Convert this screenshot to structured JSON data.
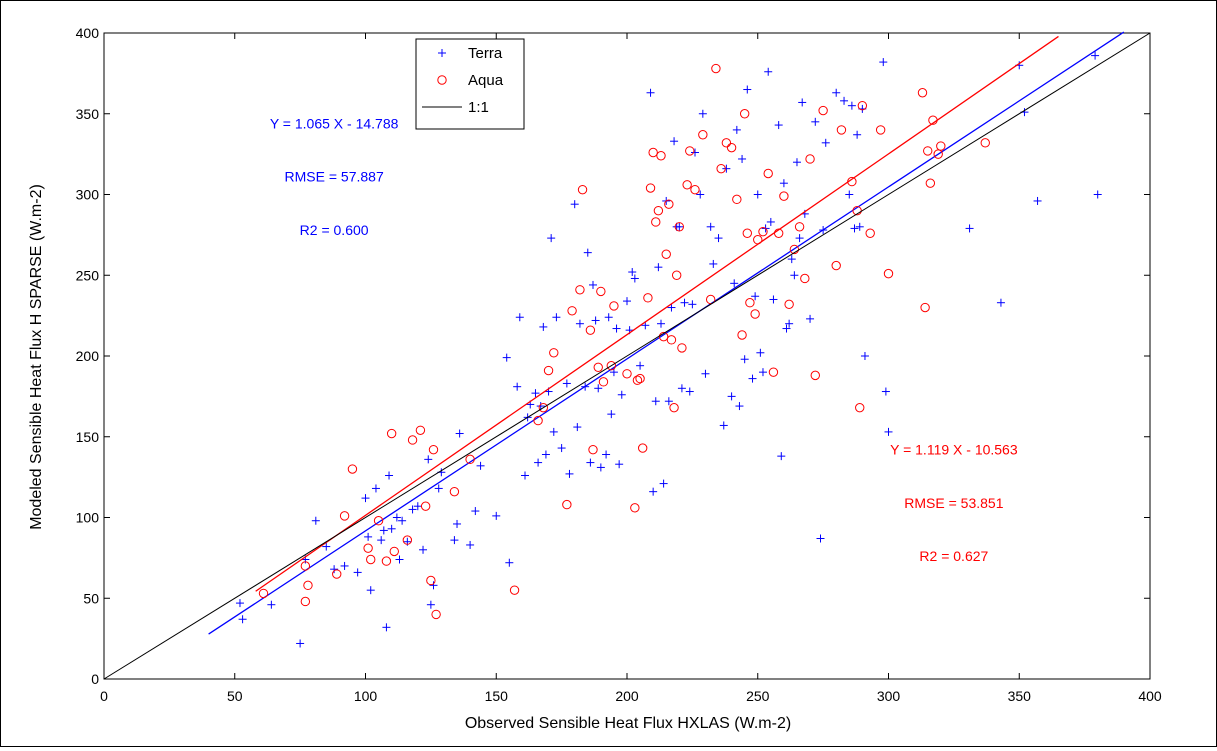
{
  "chart_data": {
    "type": "scatter",
    "xlabel": "Observed Sensible Heat Flux HXLAS (W.m-2)",
    "ylabel": "Modeled Sensible Heat Flux H SPARSE (W.m-2)",
    "xlim": [
      0,
      400
    ],
    "ylim": [
      0,
      400
    ],
    "xticks": [
      0,
      50,
      100,
      150,
      200,
      250,
      300,
      350,
      400
    ],
    "yticks": [
      0,
      50,
      100,
      150,
      200,
      250,
      300,
      350,
      400
    ],
    "grid": false,
    "legend_position": "top-center",
    "legend": [
      {
        "label": "Terra",
        "marker": "plus",
        "color": "#0000ff"
      },
      {
        "label": "Aqua",
        "marker": "circle",
        "color": "#ff0000"
      },
      {
        "label": "1:1",
        "marker": "line",
        "color": "#000000"
      }
    ],
    "series": [
      {
        "name": "Terra",
        "color": "#0000ff",
        "marker": "plus",
        "fit": {
          "slope": 1.065,
          "intercept": -14.788,
          "x_range": [
            40,
            390
          ]
        },
        "x": [
          52,
          53,
          64,
          75,
          77,
          81,
          85,
          88,
          92,
          97,
          100,
          101,
          102,
          104,
          106,
          107,
          108,
          109,
          110,
          112,
          113,
          114,
          116,
          118,
          120,
          122,
          124,
          125,
          126,
          128,
          129,
          134,
          135,
          136,
          140,
          142,
          144,
          150,
          154,
          155,
          158,
          159,
          161,
          162,
          163,
          165,
          166,
          167,
          168,
          169,
          170,
          171,
          172,
          173,
          175,
          177,
          178,
          180,
          181,
          182,
          184,
          185,
          186,
          187,
          188,
          189,
          190,
          192,
          193,
          194,
          195,
          196,
          197,
          198,
          200,
          201,
          202,
          203,
          205,
          207,
          209,
          210,
          211,
          212,
          213,
          214,
          215,
          216,
          217,
          218,
          219,
          220,
          221,
          222,
          224,
          225,
          226,
          228,
          229,
          230,
          232,
          233,
          235,
          237,
          238,
          240,
          241,
          242,
          243,
          244,
          245,
          246,
          248,
          249,
          250,
          251,
          252,
          253,
          254,
          255,
          256,
          258,
          259,
          260,
          261,
          262,
          263,
          264,
          265,
          266,
          267,
          268,
          270,
          272,
          274,
          275,
          276,
          280,
          283,
          285,
          286,
          287,
          288,
          289,
          290,
          291,
          298,
          299,
          300,
          331,
          343,
          350,
          352,
          357,
          379,
          380
        ],
        "y": [
          47,
          37,
          46,
          22,
          74,
          98,
          82,
          68,
          70,
          66,
          112,
          88,
          55,
          118,
          86,
          92,
          32,
          126,
          93,
          100,
          74,
          98,
          85,
          105,
          107,
          80,
          136,
          46,
          58,
          118,
          128,
          86,
          96,
          152,
          83,
          104,
          132,
          101,
          199,
          72,
          181,
          224,
          126,
          162,
          170,
          177,
          134,
          169,
          218,
          139,
          178,
          273,
          153,
          224,
          143,
          183,
          127,
          294,
          156,
          220,
          181,
          264,
          134,
          244,
          222,
          180,
          131,
          139,
          224,
          164,
          190,
          217,
          133,
          176,
          234,
          216,
          252,
          248,
          194,
          219,
          363,
          116,
          172,
          255,
          220,
          121,
          296,
          172,
          230,
          333,
          280,
          280,
          180,
          233,
          178,
          232,
          326,
          300,
          350,
          189,
          280,
          257,
          273,
          157,
          316,
          175,
          245,
          340,
          169,
          322,
          198,
          365,
          186,
          237,
          300,
          202,
          190,
          279,
          376,
          283,
          235,
          343,
          138,
          307,
          217,
          220,
          260,
          250,
          320,
          273,
          357,
          288,
          223,
          345,
          87,
          278,
          332,
          363,
          358,
          300,
          355,
          279,
          337,
          280,
          353,
          200,
          382,
          178,
          153,
          279,
          233,
          380,
          351,
          296,
          386,
          300
        ]
      },
      {
        "name": "Aqua",
        "color": "#ff0000",
        "marker": "circle",
        "fit": {
          "slope": 1.119,
          "intercept": -10.563,
          "x_range": [
            58,
            365
          ]
        },
        "x": [
          61,
          77,
          77,
          78,
          89,
          92,
          95,
          101,
          102,
          105,
          108,
          110,
          111,
          116,
          118,
          121,
          123,
          125,
          126,
          127,
          134,
          140,
          157,
          166,
          168,
          170,
          172,
          177,
          179,
          182,
          183,
          186,
          187,
          189,
          190,
          191,
          194,
          195,
          200,
          203,
          204,
          205,
          206,
          208,
          209,
          210,
          211,
          212,
          213,
          214,
          215,
          216,
          217,
          218,
          219,
          220,
          221,
          223,
          224,
          226,
          229,
          232,
          234,
          236,
          238,
          240,
          242,
          244,
          245,
          246,
          247,
          249,
          250,
          252,
          254,
          256,
          258,
          260,
          262,
          264,
          266,
          268,
          270,
          272,
          275,
          280,
          282,
          286,
          288,
          289,
          290,
          293,
          297,
          300,
          313,
          314,
          315,
          316,
          317,
          319,
          320,
          337
        ],
        "y": [
          53,
          70,
          48,
          58,
          65,
          101,
          130,
          81,
          74,
          98,
          73,
          152,
          79,
          86,
          148,
          154,
          107,
          61,
          142,
          40,
          116,
          136,
          55,
          160,
          168,
          191,
          202,
          108,
          228,
          241,
          303,
          216,
          142,
          193,
          240,
          184,
          194,
          231,
          189,
          106,
          185,
          186,
          143,
          236,
          304,
          326,
          283,
          290,
          324,
          212,
          263,
          294,
          210,
          168,
          250,
          280,
          205,
          306,
          327,
          303,
          337,
          235,
          378,
          316,
          332,
          329,
          297,
          213,
          350,
          276,
          233,
          226,
          272,
          277,
          313,
          190,
          276,
          299,
          232,
          266,
          280,
          248,
          322,
          188,
          352,
          256,
          340,
          308,
          290,
          168,
          355,
          276,
          340,
          251,
          363,
          230,
          327,
          307,
          346,
          325,
          330,
          332
        ]
      },
      {
        "name": "1:1",
        "color": "#000000",
        "marker": "line",
        "line_from": [
          0,
          0
        ],
        "line_to": [
          400,
          400
        ]
      }
    ],
    "annotations": [
      {
        "text": "Y = 1.065 X - 14.788",
        "color": "#0000ff",
        "at": [
          88,
          341
        ]
      },
      {
        "text": "RMSE = 57.887",
        "color": "#0000ff",
        "at": [
          88,
          308
        ]
      },
      {
        "text": "R2 = 0.600",
        "color": "#0000ff",
        "at": [
          88,
          275
        ]
      },
      {
        "text": "Y = 1.119 X - 10.563",
        "color": "#ff0000",
        "at": [
          325,
          139
        ]
      },
      {
        "text": "RMSE = 53.851",
        "color": "#ff0000",
        "at": [
          325,
          106
        ]
      },
      {
        "text": "R2 = 0.627",
        "color": "#ff0000",
        "at": [
          325,
          73
        ]
      }
    ]
  }
}
